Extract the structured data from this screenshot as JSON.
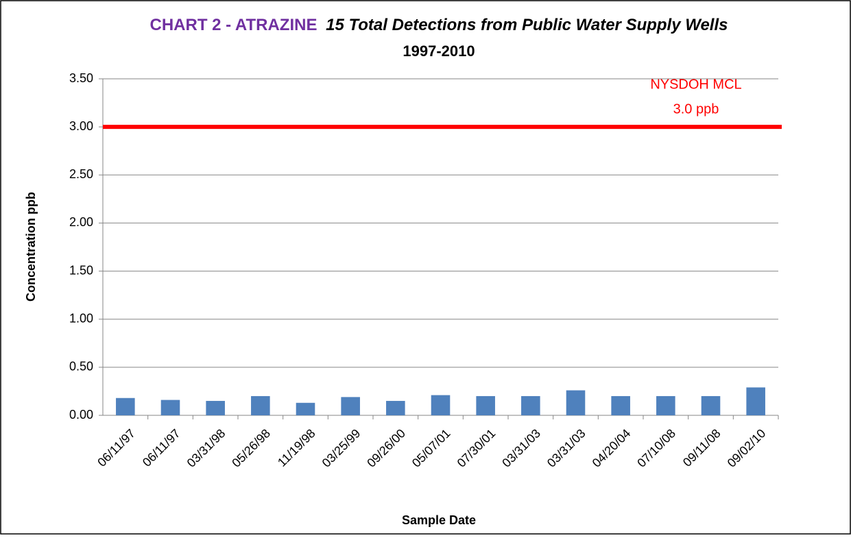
{
  "chart_data": {
    "type": "bar",
    "title": "CHART 2 - ATRAZINE",
    "subtitle": "15 Total Detections from Public Water Supply Wells",
    "period": "1997-2010",
    "y_label": "Concentration ppb",
    "x_label": "Sample Date",
    "categories": [
      "06/11/97",
      "06/11/97",
      "03/31/98",
      "05/26/98",
      "11/19/98",
      "03/25/99",
      "09/26/00",
      "05/07/01",
      "07/30/01",
      "03/31/03",
      "03/31/03",
      "04/20/04",
      "07/10/08",
      "09/11/08",
      "09/02/10"
    ],
    "values": [
      0.18,
      0.16,
      0.15,
      0.2,
      0.13,
      0.19,
      0.15,
      0.21,
      0.2,
      0.2,
      0.26,
      0.2,
      0.2,
      0.2,
      0.29
    ],
    "color": "#4f81bd",
    "ylim": [
      0,
      3.5
    ],
    "yticks": [
      {
        "value": 0,
        "label": "0.00"
      },
      {
        "value": 0.5,
        "label": "0.50"
      },
      {
        "value": 1,
        "label": "1.00"
      },
      {
        "value": 1.5,
        "label": "1.50"
      },
      {
        "value": 2,
        "label": "2.00"
      },
      {
        "value": 2.5,
        "label": "2.50"
      },
      {
        "value": 3,
        "label": "3.00"
      },
      {
        "value": 3.5,
        "label": "3.50"
      }
    ],
    "grid": true,
    "reference_line": {
      "value": 3.0,
      "color": "#ff0000",
      "labels": [
        "NYSDOH MCL",
        "3.0 ppb"
      ]
    }
  }
}
